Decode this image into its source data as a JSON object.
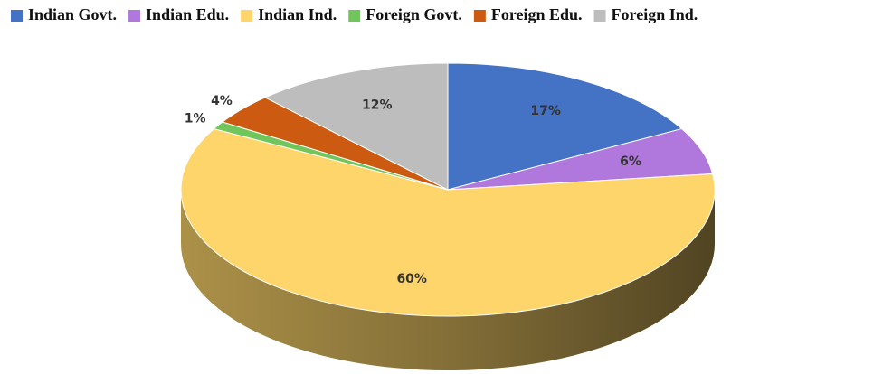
{
  "chart_data": {
    "type": "pie",
    "categories": [
      "Indian Govt.",
      "Indian Edu.",
      "Indian Ind.",
      "Foreign Govt.",
      "Foreign Edu.",
      "Foreign Ind."
    ],
    "values": [
      17,
      6,
      60,
      1,
      4,
      12
    ],
    "value_labels": [
      "17%",
      "6%",
      "60%",
      "1%",
      "4%",
      "12%"
    ],
    "colors": [
      "#4472c4",
      "#b077dd",
      "#fdd56a",
      "#70c65a",
      "#cc5a10",
      "#bdbdbd"
    ],
    "legend": "top"
  }
}
